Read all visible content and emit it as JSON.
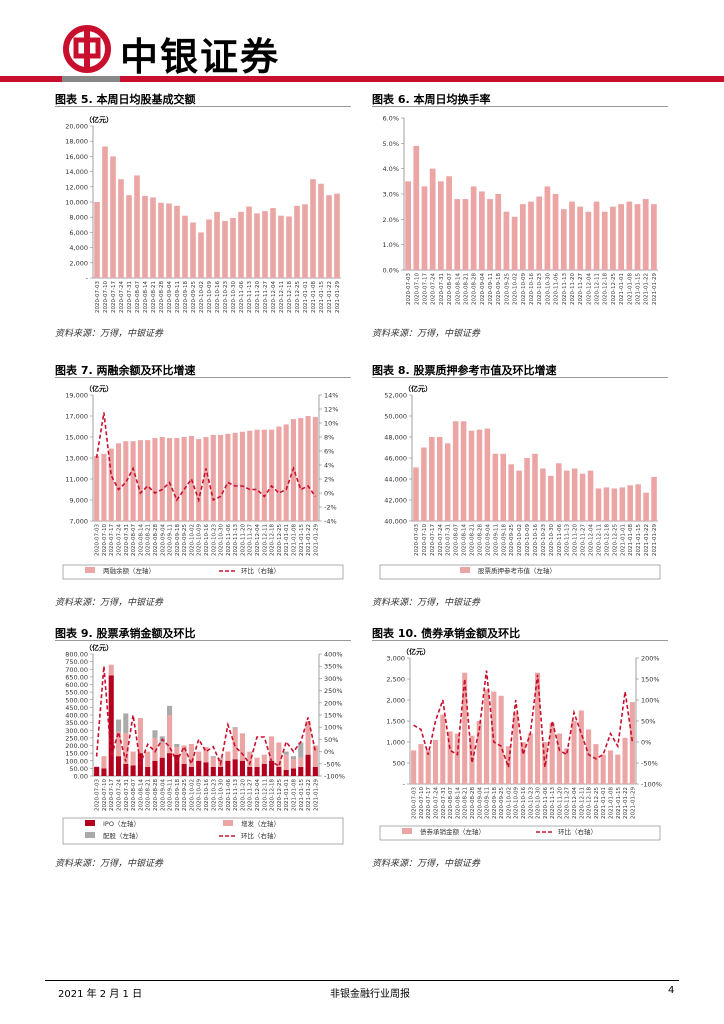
{
  "header": {
    "logo_text": "中银证券"
  },
  "footer": {
    "date": "2021 年 2 月 1 日",
    "title": "非银金融行业周报",
    "page": "4"
  },
  "colors": {
    "bar": "#eba5a5",
    "line": "#c8102e",
    "ipo": "#b3001e",
    "bond": "#aaaaaa",
    "brand": "#c8102e"
  },
  "dates_fig5": [
    "2020-07-03",
    "2020-07-10",
    "2020-07-17",
    "2020-07-24",
    "2020-07-31",
    "2020-08-07",
    "2020-08-14",
    "2020-08-21",
    "2020-08-28",
    "2020-09-04",
    "2020-09-11",
    "2020-09-18",
    "2020-09-25",
    "2020-10-02",
    "2020-10-09",
    "2020-10-16",
    "2020-10-23",
    "2020-10-30",
    "2020-11-06",
    "2020-11-13",
    "2020-11-20",
    "2020-11-27",
    "2020-12-04",
    "2020-12-11",
    "2020-12-18",
    "2020-12-25",
    "2021-01-01",
    "2021-01-08",
    "2021-01-15",
    "2021-01-22",
    "2021-01-29"
  ],
  "charts": [
    {
      "id": "fig5",
      "title": "图表 5. 本周日均股基成交额",
      "source": "资料来源：万得，中银证券",
      "chart_data": {
        "type": "bar",
        "unit_label": "（亿元）",
        "ylim": [
          0,
          20000
        ],
        "yticks": [
          "-",
          "2,000",
          "4,000",
          "6,000",
          "8,000",
          "10,000",
          "12,000",
          "14,000",
          "16,000",
          "18,000",
          "20,000"
        ],
        "values": [
          10000,
          17300,
          16000,
          13000,
          10900,
          13500,
          10800,
          10600,
          9900,
          9800,
          9500,
          8200,
          7300,
          6000,
          7700,
          8700,
          7500,
          7900,
          8700,
          9400,
          8500,
          8800,
          9200,
          8200,
          8100,
          9500,
          9700,
          13000,
          12400,
          10900,
          11100
        ]
      }
    },
    {
      "id": "fig6",
      "title": "图表 6. 本周日均换手率",
      "source": "资料来源：万得，中银证券",
      "chart_data": {
        "type": "bar",
        "unit_label": "",
        "ylim": [
          0,
          6
        ],
        "yticks": [
          "0.0%",
          "1.0%",
          "2.0%",
          "3.0%",
          "4.0%",
          "5.0%",
          "6.0%"
        ],
        "values": [
          3.5,
          4.9,
          3.3,
          4.0,
          3.5,
          3.7,
          2.8,
          2.8,
          3.3,
          3.1,
          2.8,
          3.0,
          2.3,
          2.1,
          2.6,
          2.7,
          2.9,
          3.3,
          3.0,
          2.4,
          2.7,
          2.5,
          2.3,
          2.7,
          2.3,
          2.5,
          2.6,
          2.7,
          2.6,
          2.8,
          2.6
        ]
      }
    },
    {
      "id": "fig7",
      "title": "图表 7. 两融余额及环比增速",
      "source": "资料来源：万得，中银证券",
      "chart_data": {
        "type": "bar+line",
        "unit_label": "（亿元）",
        "ylim": [
          7000,
          19000
        ],
        "yticks": [
          "7,000",
          "9,000",
          "11,000",
          "13,000",
          "15,000",
          "17,000",
          "19,000"
        ],
        "y2lim": [
          -4,
          14
        ],
        "y2ticks": [
          "-4%",
          "-2%",
          "0%",
          "2%",
          "4%",
          "6%",
          "8%",
          "10%",
          "12%",
          "14%"
        ],
        "values": [
          13200,
          13400,
          13900,
          14400,
          14600,
          14600,
          14700,
          14700,
          14900,
          15000,
          14900,
          14900,
          15000,
          15100,
          14800,
          15000,
          15200,
          15200,
          15300,
          15400,
          15500,
          15600,
          15700,
          15700,
          15700,
          16000,
          16200,
          16700,
          16800,
          17000,
          16900
        ],
        "series": [
          {
            "name": "两融余额（左轴）",
            "type": "bar"
          },
          {
            "name": "环比（右轴）",
            "type": "line",
            "values": [
              5.0,
              11.5,
              2.5,
              0.5,
              1.5,
              3.5,
              0.0,
              1.0,
              0.0,
              0.5,
              1.5,
              -1.0,
              0.5,
              2.0,
              -1.0,
              3.5,
              -1.0,
              -0.5,
              1.5,
              1.0,
              1.0,
              0.5,
              0.5,
              -0.5,
              1.0,
              0.0,
              0.5,
              3.5,
              0.5,
              1.0,
              -0.5
            ]
          }
        ],
        "legend": [
          "两融余额（左轴）",
          "环比（右轴）"
        ]
      }
    },
    {
      "id": "fig8",
      "title": "图表 8. 股票质押参考市值及环比增速",
      "source": "资料来源：万得，中银证券",
      "chart_data": {
        "type": "bar",
        "unit_label": "（亿元）",
        "ylim": [
          40000,
          52000
        ],
        "yticks": [
          "40,000",
          "42,000",
          "44,000",
          "46,000",
          "48,000",
          "50,000",
          "52,000"
        ],
        "values": [
          45100,
          47000,
          48000,
          48000,
          47400,
          49500,
          49500,
          48600,
          48700,
          48800,
          46400,
          46400,
          45400,
          44800,
          46000,
          46400,
          45000,
          44300,
          45500,
          44800,
          45000,
          44500,
          44800,
          43100,
          43200,
          43100,
          43200,
          43400,
          43500,
          42700,
          44200
        ],
        "legend": [
          "股票质押参考市值（左轴）"
        ]
      }
    },
    {
      "id": "fig9",
      "title": "图表 9. 股票承销金额及环比",
      "source": "资料来源：万得，中银证券",
      "chart_data": {
        "type": "stacked-bar+line",
        "unit_label": "（亿元）",
        "ylim": [
          0,
          800
        ],
        "yticks": [
          "0.00",
          "50.00",
          "100.00",
          "150.00",
          "200.00",
          "250.00",
          "300.00",
          "350.00",
          "400.00",
          "450.00",
          "500.00",
          "550.00",
          "600.00",
          "650.00",
          "700.00",
          "750.00",
          "800.00"
        ],
        "y2lim": [
          -100,
          400
        ],
        "y2ticks": [
          "-100%",
          "-50%",
          "0%",
          "50%",
          "100%",
          "150%",
          "200%",
          "250%",
          "300%",
          "350%",
          "400%"
        ],
        "series": [
          {
            "name": "IPO（左轴）",
            "values": [
              60,
              50,
              660,
              130,
              80,
              70,
              150,
              60,
              100,
              120,
              150,
              140,
              80,
              60,
              100,
              90,
              60,
              60,
              100,
              110,
              100,
              60,
              60,
              80,
              100,
              60,
              40,
              50,
              60,
              140,
              60
            ]
          },
          {
            "name": "增发（左轴）",
            "values": [
              0,
              80,
              70,
              160,
              200,
              90,
              230,
              100,
              150,
              100,
              250,
              50,
              120,
              150,
              60,
              100,
              60,
              60,
              60,
              200,
              180,
              100,
              60,
              60,
              160,
              160,
              100,
              60,
              60,
              220,
              140
            ]
          },
          {
            "name": "配股（左轴）",
            "values": [
              0,
              0,
              0,
              80,
              130,
              0,
              0,
              0,
              50,
              40,
              60,
              20,
              0,
              0,
              0,
              0,
              10,
              0,
              0,
              10,
              0,
              0,
              0,
              0,
              0,
              0,
              20,
              20,
              100,
              0,
              0
            ]
          },
          {
            "name": "环比（右轴）",
            "type": "line",
            "values": [
              -20,
              350,
              -20,
              80,
              -40,
              150,
              -50,
              30,
              0,
              50,
              20,
              -40,
              20,
              -50,
              50,
              0,
              20,
              -50,
              110,
              20,
              -10,
              -50,
              60,
              60,
              -40,
              -60,
              40,
              0,
              40,
              140,
              0
            ]
          }
        ],
        "legend": [
          "IPO（左轴）",
          "增发（左轴）",
          "配股（左轴）",
          "环比（右轴）"
        ]
      }
    },
    {
      "id": "fig10",
      "title": "图表 10. 债券承销金额及环比",
      "source": "资料来源：万得，中银证券",
      "chart_data": {
        "type": "bar+line",
        "unit_label": "（亿元）",
        "ylim": [
          0,
          3000
        ],
        "yticks": [
          "-",
          "500",
          "1,000",
          "1,500",
          "2,000",
          "2,500",
          "3,000"
        ],
        "y2lim": [
          -100,
          200
        ],
        "y2ticks": [
          "-100%",
          "-50%",
          "0%",
          "50%",
          "100%",
          "150%",
          "200%"
        ],
        "values": [
          800,
          950,
          800,
          1050,
          1650,
          1250,
          1200,
          2650,
          1150,
          1500,
          2250,
          2200,
          2100,
          900,
          1700,
          1000,
          1200,
          2650,
          1000,
          1450,
          1200,
          850,
          1500,
          1750,
          1300,
          950,
          700,
          800,
          700,
          1100,
          1950
        ],
        "series": [
          {
            "name": "债券承销金额（左轴）",
            "type": "bar"
          },
          {
            "name": "环比（右轴）",
            "type": "line",
            "values": [
              40,
              30,
              -30,
              50,
              100,
              -20,
              -30,
              150,
              -50,
              30,
              170,
              0,
              -10,
              -60,
              100,
              -30,
              20,
              160,
              -60,
              50,
              -20,
              -30,
              70,
              20,
              -30,
              -40,
              -30,
              20,
              -10,
              120,
              0
            ]
          }
        ],
        "legend": [
          "债券承销金额（左轴）",
          "环比（右轴）"
        ]
      }
    }
  ]
}
